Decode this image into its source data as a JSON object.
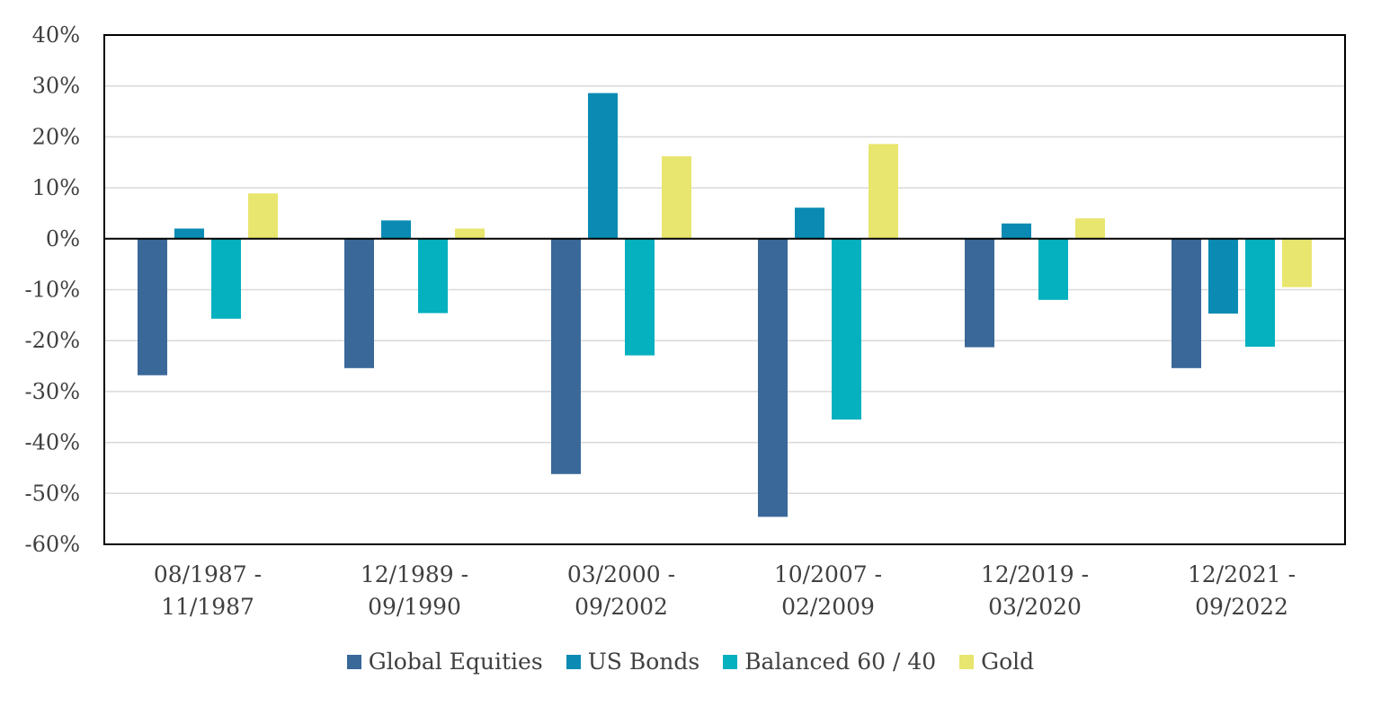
{
  "chart_data": {
    "type": "bar",
    "title": "",
    "xlabel": "",
    "ylabel": "",
    "ylim": [
      -60,
      40
    ],
    "yticks": [
      40,
      30,
      20,
      10,
      0,
      -10,
      -20,
      -30,
      -40,
      -50,
      -60
    ],
    "ytick_suffix": "%",
    "grid": true,
    "legend_position": "bottom",
    "categories": [
      [
        "08/1987 -",
        "11/1987"
      ],
      [
        "12/1989 -",
        "09/1990"
      ],
      [
        "03/2000 -",
        "09/2002"
      ],
      [
        "10/2007 -",
        "02/2009"
      ],
      [
        "12/2019 -",
        "03/2020"
      ],
      [
        "12/2021 -",
        "09/2022"
      ]
    ],
    "series": [
      {
        "name": "Global Equities",
        "color": "#3a6899",
        "values": [
          -26.8,
          -25.4,
          -46.2,
          -54.6,
          -21.3,
          -25.4
        ]
      },
      {
        "name": "US Bonds",
        "color": "#0b8bb3",
        "values": [
          2.0,
          3.6,
          28.6,
          6.1,
          3.0,
          -14.7
        ]
      },
      {
        "name": "Balanced 60 / 40",
        "color": "#05b0bf",
        "values": [
          -15.7,
          -14.6,
          -22.9,
          -35.5,
          -12.0,
          -21.2
        ]
      },
      {
        "name": "Gold",
        "color": "#e8e66e",
        "values": [
          8.9,
          2.0,
          16.2,
          18.6,
          4.0,
          -9.5
        ]
      }
    ]
  }
}
